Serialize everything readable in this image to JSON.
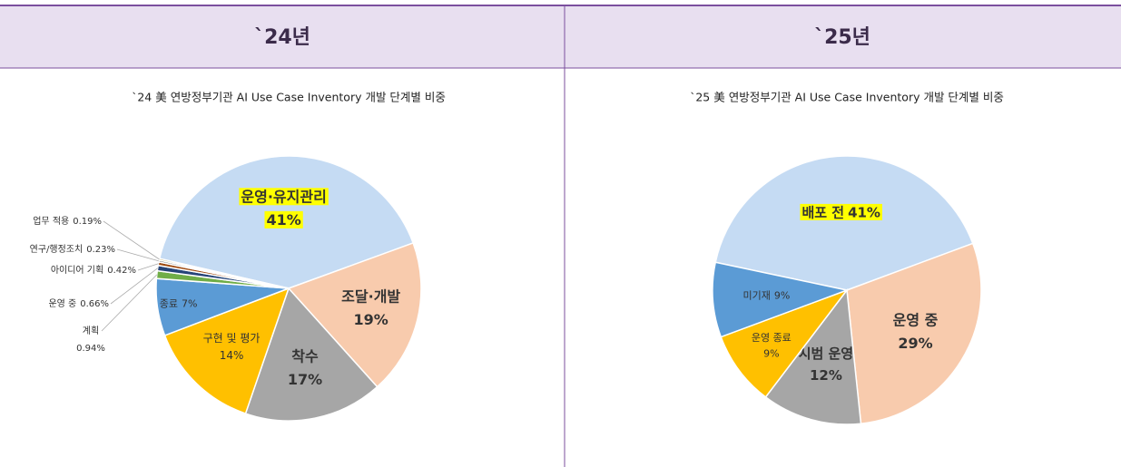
{
  "headers": [
    "`24년",
    "`25년"
  ],
  "chart_data": [
    {
      "type": "pie",
      "title": "`24 美 연방정부기관 AI Use Case Inventory 개발 단계별 비중",
      "categories": [
        "운영·유지관리",
        "조달·개발",
        "착수",
        "구현 및 평가",
        "종료",
        "계획",
        "운영 중",
        "아이디어 기획",
        "연구/행정조치",
        "업무 적용"
      ],
      "values": [
        41,
        19,
        17,
        14,
        7,
        0.94,
        0.66,
        0.42,
        0.23,
        0.19
      ],
      "value_labels": [
        "41%",
        "19%",
        "17%",
        "14%",
        "7%",
        "0.94%",
        "0.66%",
        "0.42%",
        "0.23%",
        "0.19%"
      ],
      "colors": [
        "#c5dbf3",
        "#f8cbad",
        "#a6a6a6",
        "#ffc000",
        "#5b9bd5",
        "#70ad47",
        "#264478",
        "#9e480e",
        "#636363",
        "#997300"
      ],
      "highlight_color": "#ffff00"
    },
    {
      "type": "pie",
      "title": "`25 美 연방정부기관 AI Use Case Inventory 개발 단계별 비중",
      "categories": [
        "배포 전",
        "운영 중",
        "시범 운영",
        "운영 종료",
        "미기재"
      ],
      "values": [
        41,
        29,
        12,
        9,
        9
      ],
      "value_labels": [
        "41%",
        "29%",
        "12%",
        "9%",
        "9%"
      ],
      "colors": [
        "#c5dbf3",
        "#f8cbad",
        "#a6a6a6",
        "#ffc000",
        "#5b9bd5"
      ],
      "highlight_color": "#ffff00"
    }
  ]
}
